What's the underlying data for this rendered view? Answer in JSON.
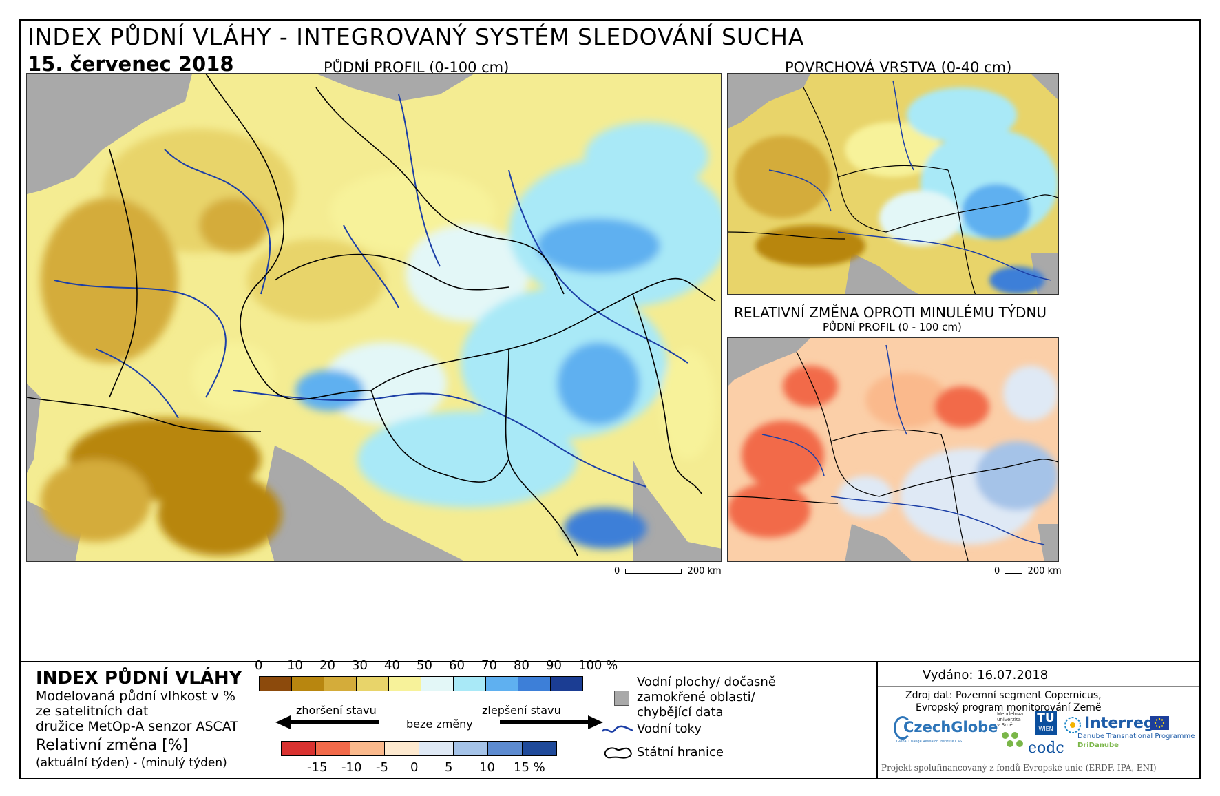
{
  "header": {
    "title": "INDEX PŮDNÍ VLÁHY - INTEGROVANÝ SYSTÉM SLEDOVÁNÍ SUCHA",
    "date": "15. červenec 2018"
  },
  "maps": {
    "main": {
      "caption": "PŮDNÍ PROFIL (0-100 cm)",
      "scale_start": "0",
      "scale_end": "200 km"
    },
    "surface": {
      "caption": "POVRCHOVÁ VRSTVA (0-40 cm)"
    },
    "change": {
      "caption": "RELATIVNÍ ZMĚNA OPROTI MINULÉMU TÝDNU",
      "subcaption": "PŮDNÍ PROFIL (0 - 100 cm)",
      "scale_start": "0",
      "scale_end": "200 km"
    }
  },
  "legend": {
    "title": "INDEX PŮDNÍ VLÁHY",
    "desc1": "Modelovaná půdní vlhkost v %",
    "desc2": "ze satelitních dat",
    "desc3": "družice MetOp-A senzor ASCAT",
    "change_title": "Relativní změna [%]",
    "change_desc": "(aktuální týden) - (minulý týden)",
    "index_ticks": [
      "0",
      "10",
      "20",
      "30",
      "40",
      "50",
      "60",
      "70",
      "80",
      "90",
      "100 %"
    ],
    "index_colors": [
      "#8c4a0c",
      "#b8860f",
      "#d4ac3a",
      "#e8d46a",
      "#f7f29a",
      "#e3f7f7",
      "#a9e9f7",
      "#5fb0f0",
      "#3d7fd8",
      "#1b3d93"
    ],
    "arrow_worse": "zhoršení stavu",
    "arrow_none": "beze změny",
    "arrow_better": "zlepšení stavu",
    "change_ticks": [
      "-15",
      "-10",
      "-5",
      "0",
      "5",
      "10",
      "15 %"
    ],
    "change_colors": [
      "#d93230",
      "#f26a4a",
      "#fab98c",
      "#fde9cf",
      "#dfe9f5",
      "#a5c3e8",
      "#5d8bd0",
      "#1f4a9a"
    ],
    "water_bodies": "Vodní plochy/ dočasně",
    "water_bodies2": "zamokřené oblasti/",
    "water_bodies3": "chybějící data",
    "rivers": "Vodní toky",
    "borders": "Státní hranice"
  },
  "info": {
    "issued": "Vydáno: 16.07.2018",
    "source1": "Zdroj dat: Pozemní segment Copernicus,",
    "source2": "Evropský program monitorování Země",
    "logo_czechglobe": "CzechGlobe",
    "logo_czechglobe_sub": "Global Change Research Institute CAS",
    "logo_mendel": "Mendelova univerzita v Brně",
    "logo_tu": "TU",
    "logo_tu_sub": "WIEN",
    "logo_eodc": "eodc",
    "logo_interreg": "Interreg",
    "logo_interreg_sub1": "Danube Transnational Programme",
    "logo_interreg_sub2": "DriDanube",
    "funding": "Projekt spolufinancovaný z fondů Evropské unie (ERDF, IPA, ENI)"
  }
}
